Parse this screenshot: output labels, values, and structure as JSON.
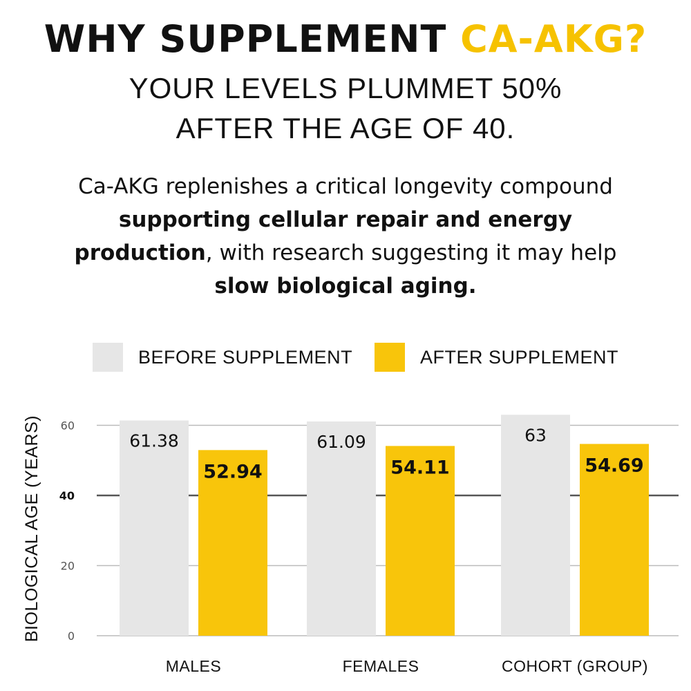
{
  "headline": {
    "prefix": "WHY SUPPLEMENT ",
    "accent": "CA-AKG?",
    "line2": "YOUR LEVELS PLUMMET 50%",
    "line3": "AFTER THE AGE OF 40."
  },
  "body": {
    "l1": "Ca-AKG replenishes a critical longevity compound",
    "l2_bold": "supporting cellular repair and energy",
    "l3_bold": "production",
    "l3_rest": ", with research suggesting it may help",
    "l4_bold": "slow biological aging."
  },
  "colors": {
    "before": "#e6e6e6",
    "after": "#f8c50b",
    "accent": "#f6c200",
    "text": "#111111",
    "grid": "#bbbbbb",
    "grid_emph": "#555555"
  },
  "chart_data": {
    "type": "bar",
    "categories": [
      "MALES",
      "FEMALES",
      "COHORT (GROUP)"
    ],
    "series": [
      {
        "name": "BEFORE SUPPLEMENT",
        "values": [
          61.38,
          61.09,
          63
        ],
        "labels": [
          "61.38",
          "61.09",
          "63"
        ]
      },
      {
        "name": "AFTER SUPPLEMENT",
        "values": [
          52.94,
          54.11,
          54.69
        ],
        "labels": [
          "52.94",
          "54.11",
          "54.69"
        ]
      }
    ],
    "ylabel": "BIOLOGICAL AGE (YEARS)",
    "xlabel": "",
    "ylim": [
      0,
      65
    ],
    "yticks": [
      0,
      20,
      40,
      60
    ],
    "ytick_labels": [
      "0",
      "20",
      "40",
      "60"
    ],
    "emphasized_tick": 40,
    "grid": true,
    "legend_position": "top"
  }
}
